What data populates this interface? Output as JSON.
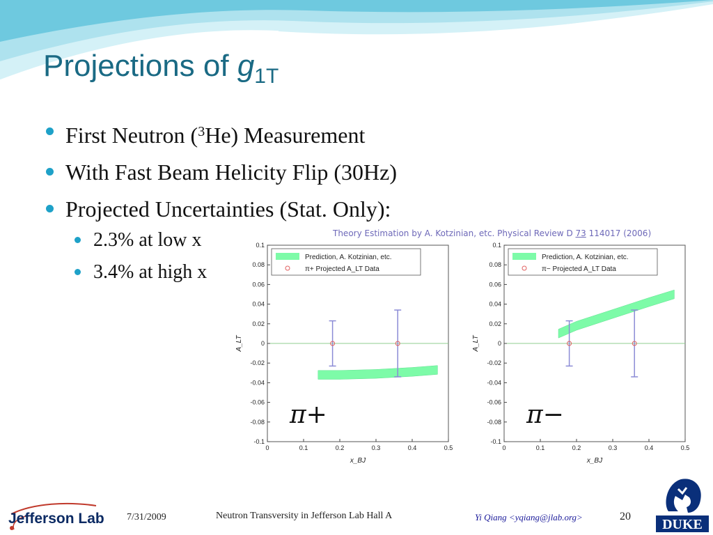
{
  "slide": {
    "title_main": "Projections of ",
    "title_symbol": "g",
    "title_subscript": "1T",
    "bullets": [
      {
        "pre": "First Neutron (",
        "sup": "3",
        "post": "He) Measurement"
      },
      {
        "text": "With Fast Beam Helicity Flip (30Hz)"
      },
      {
        "text": "Projected Uncertainties (Stat. Only):"
      }
    ],
    "sub_bullets": [
      "2.3% at low x",
      "3.4% at high x"
    ],
    "reference": {
      "pre": "Theory Estimation by A. Kotzinian, etc. Physical Review D ",
      "volume": "73",
      "post": " 114017 (2006)"
    }
  },
  "footer": {
    "logo_left": "Jefferson Lab",
    "date": "7/31/2009",
    "title": "Neutron Transversity in Jefferson Lab Hall A",
    "author": "Yi Qiang <yqiang@jlab.org>",
    "page": "20",
    "logo_right": "DUKE"
  },
  "colors": {
    "title": "#1a6a84",
    "bullet": "#1ea1c8",
    "prediction_band": "#7dfba8",
    "error_bar": "#8b8bd6",
    "reference": "#6d68b8"
  },
  "chart_data": [
    {
      "type": "scatter",
      "xlabel": "x_BJ",
      "ylabel": "A_LT",
      "xlim": [
        0,
        0.5
      ],
      "ylim": [
        -0.1,
        0.1
      ],
      "xticks": [
        "0",
        "0.1",
        "0.2",
        "0.3",
        "0.4",
        "0.5"
      ],
      "yticks": [
        "0.1",
        "0.08",
        "0.06",
        "0.04",
        "0.02",
        "0",
        "-0.02",
        "-0.04",
        "-0.06",
        "-0.08",
        "-0.1"
      ],
      "label": "π+",
      "legend": [
        "Prediction, A. Kotzinian, etc.",
        "π+ Projected A_LT Data"
      ],
      "legend_position": "top-left",
      "band": {
        "name": "Prediction, A. Kotzinian, etc.",
        "x": [
          0.14,
          0.2,
          0.3,
          0.4,
          0.47
        ],
        "y": [
          -0.032,
          -0.032,
          -0.031,
          -0.029,
          -0.027
        ]
      },
      "points": [
        {
          "x": 0.18,
          "y": 0,
          "err": 0.023
        },
        {
          "x": 0.36,
          "y": 0,
          "err": 0.034
        }
      ]
    },
    {
      "type": "scatter",
      "xlabel": "x_BJ",
      "ylabel": "A_LT",
      "xlim": [
        0,
        0.5
      ],
      "ylim": [
        -0.1,
        0.1
      ],
      "xticks": [
        "0",
        "0.1",
        "0.2",
        "0.3",
        "0.4",
        "0.5"
      ],
      "yticks": [
        "0.1",
        "0.08",
        "0.06",
        "0.04",
        "0.02",
        "0",
        "-0.02",
        "-0.04",
        "-0.06",
        "-0.08",
        "-0.1"
      ],
      "label": "π−",
      "legend": [
        "Prediction, A. Kotzinian, etc.",
        "π− Projected A_LT Data"
      ],
      "legend_position": "top-left",
      "band": {
        "name": "Prediction, A. Kotzinian, etc.",
        "x": [
          0.15,
          0.2,
          0.3,
          0.4,
          0.47
        ],
        "y": [
          0.01,
          0.018,
          0.03,
          0.042,
          0.05
        ]
      },
      "points": [
        {
          "x": 0.18,
          "y": 0,
          "err": 0.023
        },
        {
          "x": 0.36,
          "y": 0,
          "err": 0.034
        }
      ]
    }
  ]
}
